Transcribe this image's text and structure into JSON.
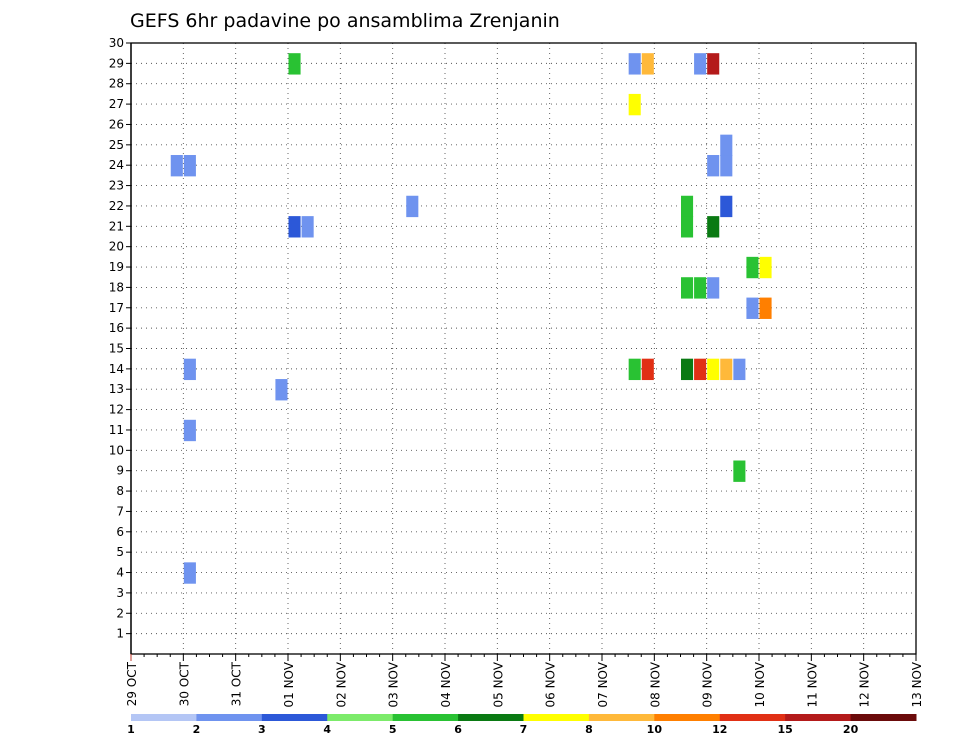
{
  "chart_data": {
    "type": "heatmap",
    "title": "GEFS 6hr padavine po ansamblima Zrenjanin",
    "xlabel": "",
    "ylabel": "",
    "y_ticks": [
      "1",
      "2",
      "3",
      "4",
      "5",
      "6",
      "7",
      "8",
      "9",
      "10",
      "11",
      "12",
      "13",
      "14",
      "15",
      "16",
      "17",
      "18",
      "19",
      "20",
      "21",
      "22",
      "23",
      "24",
      "25",
      "26",
      "27",
      "28",
      "29",
      "30"
    ],
    "ylim": [
      0,
      30
    ],
    "x_ticks": [
      "29 OCT",
      "30 OCT",
      "31 OCT",
      "01 NOV",
      "02 NOV",
      "03 NOV",
      "04 NOV",
      "05 NOV",
      "06 NOV",
      "07 NOV",
      "08 NOV",
      "09 NOV",
      "10 NOV",
      "11 NOV",
      "12 NOV",
      "13 NOV"
    ],
    "x_unit": "6-hour steps from 29 OCT 00Z",
    "grid": true,
    "legend": {
      "placement": "bottom",
      "labels": [
        "1",
        "2",
        "3",
        "4",
        "5",
        "6",
        "7",
        "8",
        "10",
        "12",
        "15",
        "20"
      ],
      "colors": [
        "#b4c6f5",
        "#6f93ef",
        "#2c58d8",
        "#7ceb6a",
        "#29c233",
        "#0a7a13",
        "#ffff00",
        "#ffb93a",
        "#ff7f00",
        "#e13015",
        "#b41a1a",
        "#6b0b0b"
      ]
    },
    "cells": [
      {
        "member": 29,
        "step": 12,
        "bin": 4
      },
      {
        "member": 29,
        "step": 38,
        "bin": 1
      },
      {
        "member": 29,
        "step": 39,
        "bin": 7
      },
      {
        "member": 29,
        "step": 43,
        "bin": 1
      },
      {
        "member": 29,
        "step": 44,
        "bin": 10
      },
      {
        "member": 27,
        "step": 38,
        "bin": 6
      },
      {
        "member": 25,
        "step": 45,
        "bin": 1
      },
      {
        "member": 24,
        "step": 3,
        "bin": 1
      },
      {
        "member": 24,
        "step": 4,
        "bin": 1
      },
      {
        "member": 24,
        "step": 44,
        "bin": 1
      },
      {
        "member": 24,
        "step": 45,
        "bin": 1
      },
      {
        "member": 22,
        "step": 21,
        "bin": 1
      },
      {
        "member": 22,
        "step": 42,
        "bin": 4
      },
      {
        "member": 22,
        "step": 45,
        "bin": 2
      },
      {
        "member": 21,
        "step": 12,
        "bin": 2
      },
      {
        "member": 21,
        "step": 13,
        "bin": 1
      },
      {
        "member": 21,
        "step": 42,
        "bin": 4
      },
      {
        "member": 21,
        "step": 44,
        "bin": 5
      },
      {
        "member": 19,
        "step": 47,
        "bin": 4
      },
      {
        "member": 19,
        "step": 48,
        "bin": 6
      },
      {
        "member": 18,
        "step": 42,
        "bin": 4
      },
      {
        "member": 18,
        "step": 43,
        "bin": 4
      },
      {
        "member": 18,
        "step": 44,
        "bin": 1
      },
      {
        "member": 17,
        "step": 47,
        "bin": 1
      },
      {
        "member": 17,
        "step": 48,
        "bin": 8
      },
      {
        "member": 14,
        "step": 4,
        "bin": 1
      },
      {
        "member": 14,
        "step": 38,
        "bin": 4
      },
      {
        "member": 14,
        "step": 39,
        "bin": 9
      },
      {
        "member": 14,
        "step": 42,
        "bin": 5
      },
      {
        "member": 14,
        "step": 43,
        "bin": 9
      },
      {
        "member": 14,
        "step": 44,
        "bin": 6
      },
      {
        "member": 14,
        "step": 45,
        "bin": 7
      },
      {
        "member": 14,
        "step": 46,
        "bin": 1
      },
      {
        "member": 13,
        "step": 11,
        "bin": 1
      },
      {
        "member": 11,
        "step": 4,
        "bin": 1
      },
      {
        "member": 9,
        "step": 46,
        "bin": 4
      },
      {
        "member": 4,
        "step": 4,
        "bin": 1
      }
    ]
  }
}
